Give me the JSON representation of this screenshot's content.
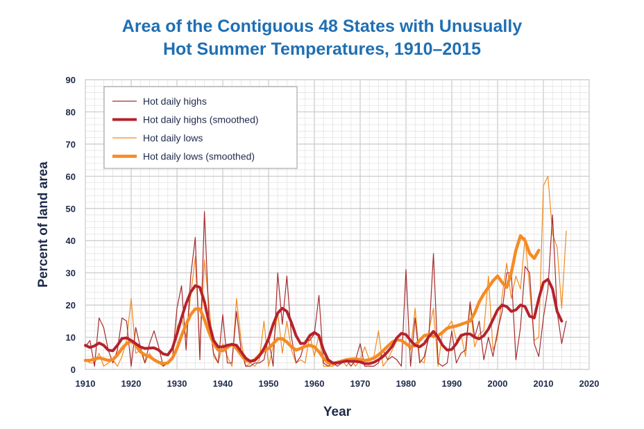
{
  "chart_data": {
    "type": "line",
    "title_line1": "Area of the Contiguous 48 States with Unusually",
    "title_line2": "Hot Summer Temperatures, 1910–2015",
    "xlabel": "Year",
    "ylabel": "Percent of land area",
    "xlim": [
      1910,
      2020
    ],
    "ylim": [
      0,
      90
    ],
    "xticks": [
      1910,
      1920,
      1930,
      1940,
      1950,
      1960,
      1970,
      1980,
      1990,
      2000,
      2010,
      2020
    ],
    "yticks": [
      0,
      10,
      20,
      30,
      40,
      50,
      60,
      70,
      80,
      90
    ],
    "grid": true,
    "legend_position": "top-left",
    "colors": {
      "highs": "#a52a2e",
      "highs_smoothed": "#b5222c",
      "lows": "#f08a1c",
      "lows_smoothed": "#f58b24",
      "grid": "#cccccc",
      "plot_border": "#9a9a9a",
      "text": "#1e2a4a",
      "title": "#1f6fb3"
    },
    "series": [
      {
        "name": "Hot daily highs",
        "x_start": 1910,
        "values": [
          7,
          9,
          1,
          16,
          13,
          6,
          2,
          6,
          16,
          15,
          1,
          13,
          7,
          2,
          8,
          12,
          7,
          1,
          2,
          3,
          19,
          26,
          6,
          29,
          41,
          3,
          49,
          15,
          5,
          2,
          17,
          2,
          2,
          18,
          6,
          1,
          1,
          2,
          2,
          3,
          10,
          1,
          30,
          14,
          29,
          10,
          2,
          4,
          9,
          9,
          11,
          23,
          2,
          1,
          2,
          1,
          2,
          3,
          1,
          3,
          8,
          1,
          1,
          1,
          2,
          6,
          3,
          4,
          3,
          1,
          31,
          1,
          16,
          2,
          4,
          10,
          36,
          2,
          1,
          2,
          12,
          2,
          5,
          6,
          21,
          10,
          15,
          3,
          10,
          4,
          12,
          18,
          30,
          30,
          3,
          13,
          32,
          30,
          8,
          4,
          16,
          25,
          48,
          18,
          8,
          15
        ]
      },
      {
        "name": "Hot daily highs (smoothed)",
        "x_start": 1910,
        "values": [
          7.5,
          6.8,
          7.3,
          8.2,
          7.5,
          6.0,
          5.8,
          7.5,
          9.6,
          9.8,
          9.0,
          8.0,
          7.0,
          6.5,
          6.6,
          6.7,
          6.0,
          4.8,
          4.5,
          6.5,
          11.0,
          16.0,
          20.5,
          24.0,
          26.0,
          25.5,
          21.0,
          14.5,
          9.0,
          7.0,
          7.0,
          7.5,
          7.8,
          7.5,
          5.5,
          3.5,
          2.5,
          2.8,
          4.2,
          6.5,
          9.5,
          14.0,
          17.5,
          19.0,
          18.0,
          14.5,
          10.5,
          8.0,
          8.2,
          10.5,
          11.5,
          10.5,
          6.0,
          3.0,
          2.0,
          2.0,
          2.3,
          2.6,
          2.5,
          2.5,
          2.3,
          1.8,
          1.8,
          2.2,
          3.0,
          4.0,
          5.5,
          7.2,
          9.8,
          11.2,
          10.8,
          9.0,
          7.5,
          7.0,
          8.0,
          10.2,
          11.8,
          10.0,
          7.5,
          6.0,
          6.2,
          8.0,
          10.5,
          11.0,
          11.0,
          10.0,
          9.5,
          10.5,
          12.5,
          15.5,
          18.5,
          20.0,
          19.5,
          18.0,
          18.5,
          20.0,
          19.5,
          16.5,
          16.0,
          22.0,
          27.0,
          28.0,
          25.0,
          18.0,
          15.0
        ]
      },
      {
        "name": "Hot daily lows",
        "x_start": 1910,
        "values": [
          3,
          2,
          2,
          5,
          1,
          2,
          3,
          1,
          4,
          9,
          22,
          5,
          6,
          2,
          5,
          3,
          2,
          1,
          2,
          4,
          13,
          16,
          10,
          23,
          35,
          6,
          34,
          20,
          4,
          2,
          8,
          4,
          1,
          22,
          9,
          1,
          2,
          1,
          3,
          15,
          1,
          7,
          18,
          5,
          15,
          6,
          2,
          3,
          2,
          11,
          4,
          11,
          1,
          1,
          1,
          2,
          3,
          1,
          3,
          1,
          3,
          7,
          3,
          4,
          12,
          1,
          3,
          6,
          9,
          9,
          8,
          6,
          19,
          3,
          2,
          12,
          19,
          1,
          12,
          13,
          15,
          9,
          11,
          4,
          20,
          7,
          11,
          12,
          29,
          6,
          10,
          23,
          33,
          22,
          29,
          25,
          41,
          25,
          9,
          10,
          57,
          60,
          42,
          38,
          19,
          43
        ]
      },
      {
        "name": "Hot daily lows (smoothed)",
        "x_start": 1910,
        "values": [
          2.8,
          2.8,
          3.2,
          3.6,
          3.2,
          2.8,
          3.0,
          4.5,
          6.5,
          8.0,
          8.8,
          7.5,
          5.5,
          4.5,
          4.0,
          3.0,
          2.2,
          1.8,
          2.0,
          3.5,
          6.5,
          10.5,
          14.0,
          17.0,
          18.8,
          18.8,
          15.5,
          11.5,
          8.0,
          6.0,
          5.8,
          6.8,
          7.8,
          6.5,
          4.5,
          2.8,
          2.5,
          3.0,
          4.5,
          5.8,
          6.5,
          8.0,
          9.5,
          9.5,
          8.5,
          7.0,
          6.0,
          6.5,
          7.2,
          7.5,
          7.0,
          5.5,
          3.5,
          2.0,
          1.8,
          2.2,
          2.6,
          3.0,
          3.2,
          3.3,
          3.0,
          2.8,
          3.0,
          3.5,
          4.5,
          5.8,
          7.2,
          8.5,
          9.2,
          9.0,
          8.0,
          7.0,
          7.5,
          9.0,
          10.5,
          10.8,
          10.2,
          10.5,
          11.5,
          12.8,
          13.2,
          13.5,
          14.0,
          14.5,
          15.0,
          17.5,
          21.0,
          23.5,
          25.5,
          27.5,
          29.0,
          27.0,
          25.5,
          30.0,
          37.0,
          41.5,
          40.0,
          36.0,
          34.5,
          37.0
        ]
      }
    ]
  }
}
